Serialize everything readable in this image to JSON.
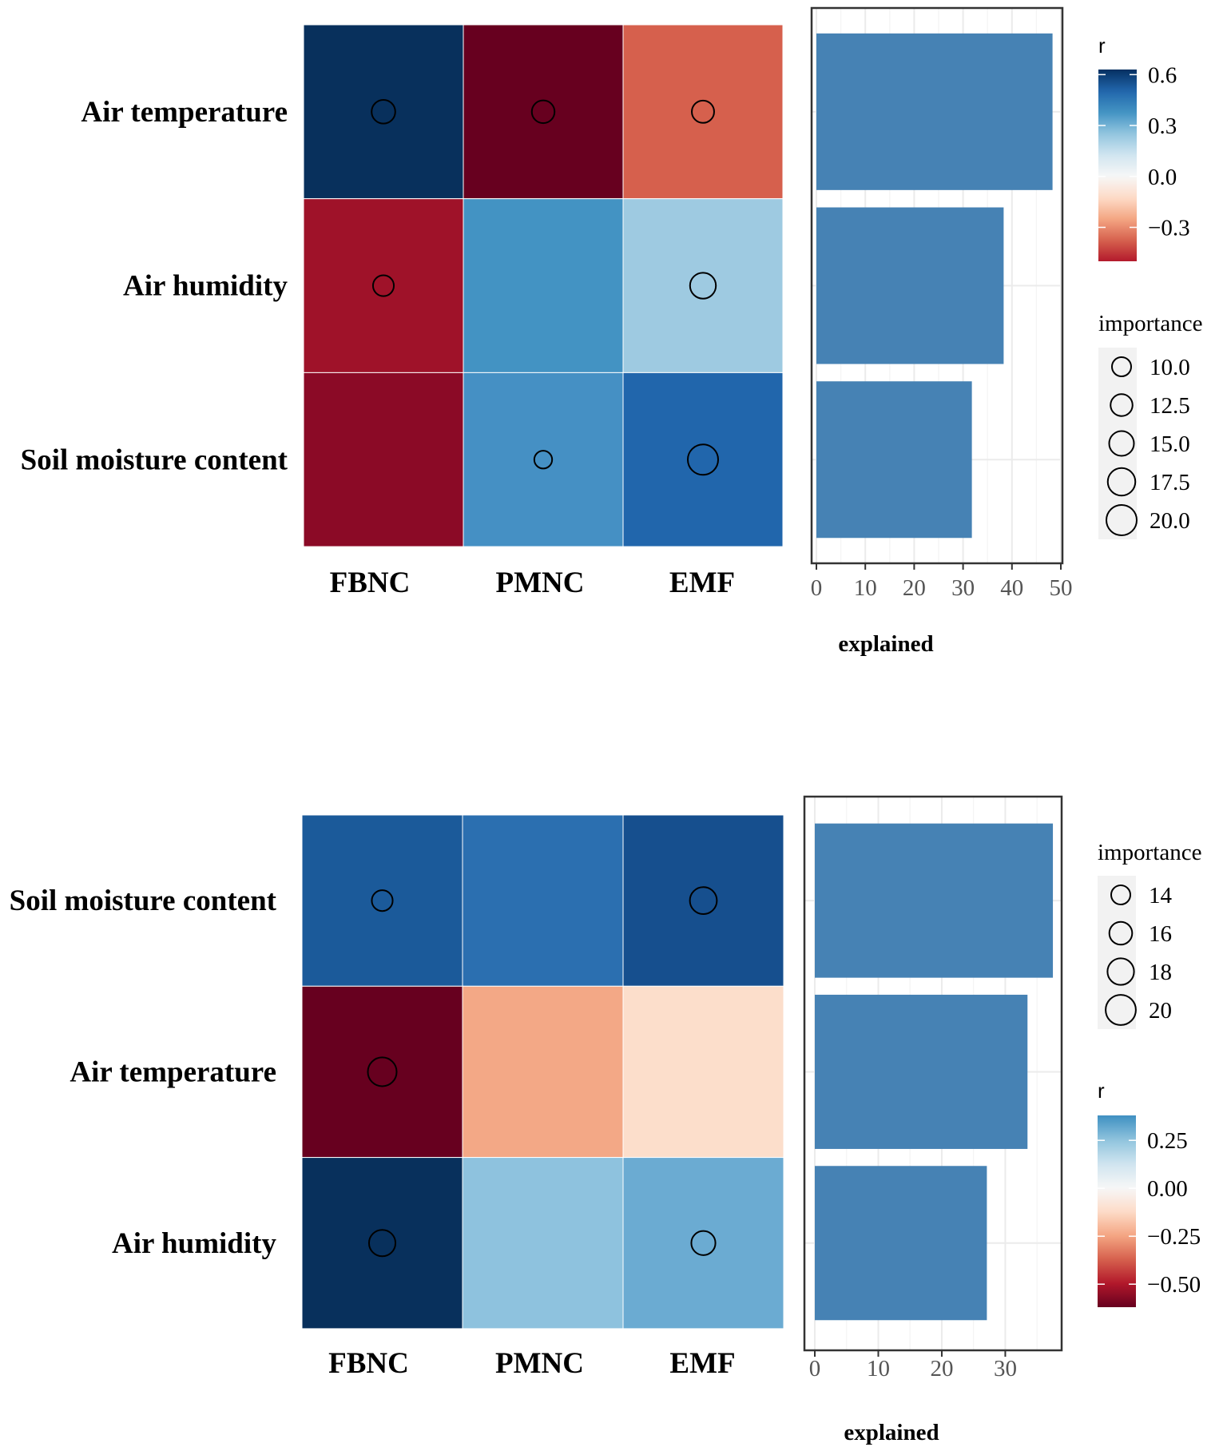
{
  "colors": {
    "bar": "#4682B4",
    "panel_grid": "#EBEBEB",
    "legend_key_bg": "#F2F2F2",
    "scale": [
      "#67001F",
      "#B2182B",
      "#D6604D",
      "#F4A582",
      "#FDDBC7",
      "#F7F7F7",
      "#D1E5F0",
      "#92C5DE",
      "#4393C3",
      "#2166AC",
      "#053061"
    ]
  },
  "chart_data": [
    {
      "type": "heatmap",
      "title": "",
      "rows": [
        "Air temperature",
        "Air humidity",
        "Soil moisture content"
      ],
      "columns": [
        "FBNC",
        "PMNC",
        "EMF"
      ],
      "cells": [
        [
          {
            "color": "#08305C",
            "importance": 14.0
          },
          {
            "color": "#67001F",
            "importance": 13.2
          },
          {
            "color": "#D6604D",
            "importance": 12.8
          }
        ],
        [
          {
            "color": "#9F1229",
            "importance": 11.5
          },
          {
            "color": "#4393C3",
            "importance": null
          },
          {
            "color": "#9ECAE1",
            "importance": 16.0
          }
        ],
        [
          {
            "color": "#8B0A26",
            "importance": null
          },
          {
            "color": "#4590C4",
            "importance": 8.8
          },
          {
            "color": "#2166AC",
            "importance": 20.0
          }
        ]
      ],
      "bar_chart": {
        "type": "bar",
        "orientation": "horizontal",
        "categories": [
          "Air temperature",
          "Air humidity",
          "Soil moisture content"
        ],
        "values": [
          48.3,
          38.3,
          31.8
        ],
        "xlabel": "explained",
        "xlim": [
          0,
          50
        ],
        "xticks": [
          0,
          10,
          20,
          30,
          40,
          50
        ],
        "xtick_labels": [
          "0",
          "10",
          "20",
          "30",
          "40",
          "50"
        ]
      },
      "legend_r": {
        "title": "r",
        "range": [
          -0.5,
          0.63
        ],
        "ticks": [
          0.6,
          0.3,
          0.0,
          -0.3
        ],
        "tick_labels": [
          "0.6",
          "0.3",
          "0.0",
          "−0.3"
        ]
      },
      "legend_importance": {
        "title": "importance",
        "values": [
          10.0,
          12.5,
          15.0,
          17.5,
          20.0
        ],
        "labels": [
          "10.0",
          "12.5",
          "15.0",
          "17.5",
          "20.0"
        ]
      }
    },
    {
      "type": "heatmap",
      "title": "",
      "rows": [
        "Soil moisture content",
        "Air temperature",
        "Air humidity"
      ],
      "columns": [
        "FBNC",
        "PMNC",
        "EMF"
      ],
      "cells": [
        [
          {
            "color": "#1B5A9A",
            "importance": 11.5
          },
          {
            "color": "#2B6FB0",
            "importance": null
          },
          {
            "color": "#164F8E",
            "importance": 17.0
          }
        ],
        [
          {
            "color": "#67001F",
            "importance": 18.6
          },
          {
            "color": "#F3A886",
            "importance": null
          },
          {
            "color": "#FCDECB",
            "importance": null
          }
        ],
        [
          {
            "color": "#08305C",
            "importance": 16.5
          },
          {
            "color": "#8EC2DE",
            "importance": null
          },
          {
            "color": "#6BABD2",
            "importance": 14.4
          }
        ]
      ],
      "bar_chart": {
        "type": "bar",
        "orientation": "horizontal",
        "categories": [
          "Soil moisture content",
          "Air temperature",
          "Air humidity"
        ],
        "values": [
          37.5,
          33.5,
          27.1
        ],
        "xlabel": "explained",
        "xlim": [
          0,
          38.5
        ],
        "xticks": [
          0,
          10,
          20,
          30
        ],
        "xtick_labels": [
          "0",
          "10",
          "20",
          "30"
        ]
      },
      "legend_importance": {
        "title": "importance",
        "values": [
          14,
          16,
          18,
          20
        ],
        "labels": [
          "14",
          "16",
          "18",
          "20"
        ]
      },
      "legend_r": {
        "title": "r",
        "range": [
          -0.62,
          0.38
        ],
        "ticks": [
          0.25,
          0.0,
          -0.25,
          -0.5
        ],
        "tick_labels": [
          "0.25",
          "0.00",
          "−0.25",
          "−0.50"
        ]
      }
    }
  ]
}
